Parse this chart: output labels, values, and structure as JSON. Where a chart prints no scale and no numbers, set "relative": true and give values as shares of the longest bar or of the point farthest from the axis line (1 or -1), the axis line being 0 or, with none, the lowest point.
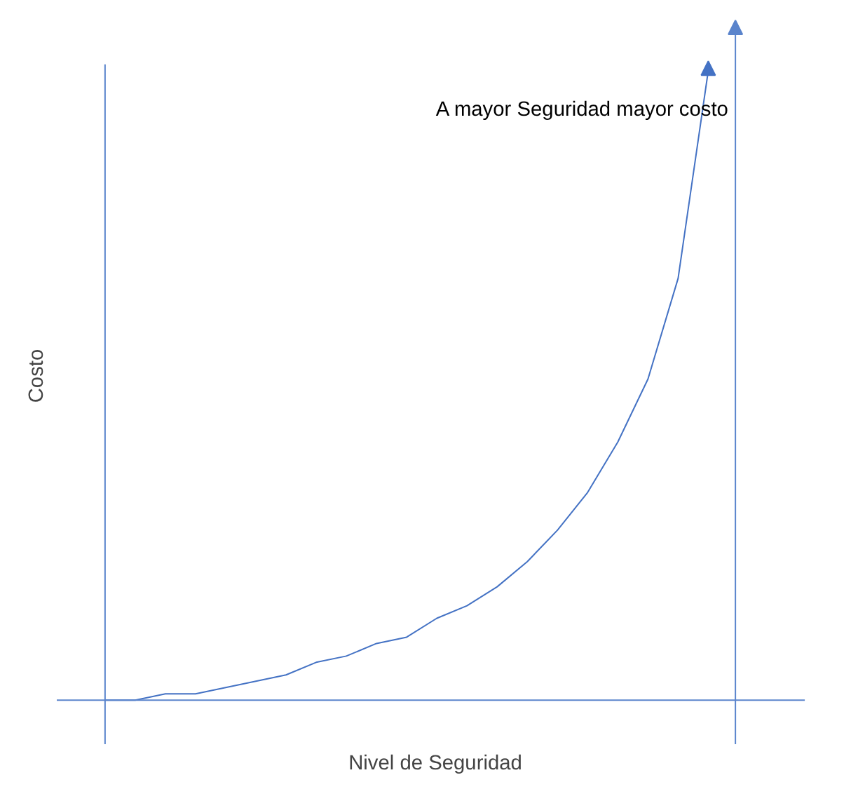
{
  "chart_data": {
    "type": "line",
    "relative": true,
    "xlabel": "Nivel de Seguridad",
    "ylabel": "Costo",
    "categories": [
      null,
      null,
      null,
      null,
      null,
      null,
      null,
      null,
      null,
      null,
      null,
      null,
      null,
      null,
      null,
      null,
      null,
      null,
      null,
      null,
      null
    ],
    "series": [
      {
        "color": "#4472c4",
        "values": [
          0,
          0,
          0.01,
          0.01,
          0.02,
          0.03,
          0.04,
          0.06,
          0.07,
          0.09,
          0.1,
          0.13,
          0.15,
          0.18,
          0.22,
          0.27,
          0.33,
          0.41,
          0.51,
          0.67,
          1
        ]
      }
    ],
    "annotations": [
      "A mayor Seguridad mayor costo"
    ],
    "line_style": "solid"
  }
}
